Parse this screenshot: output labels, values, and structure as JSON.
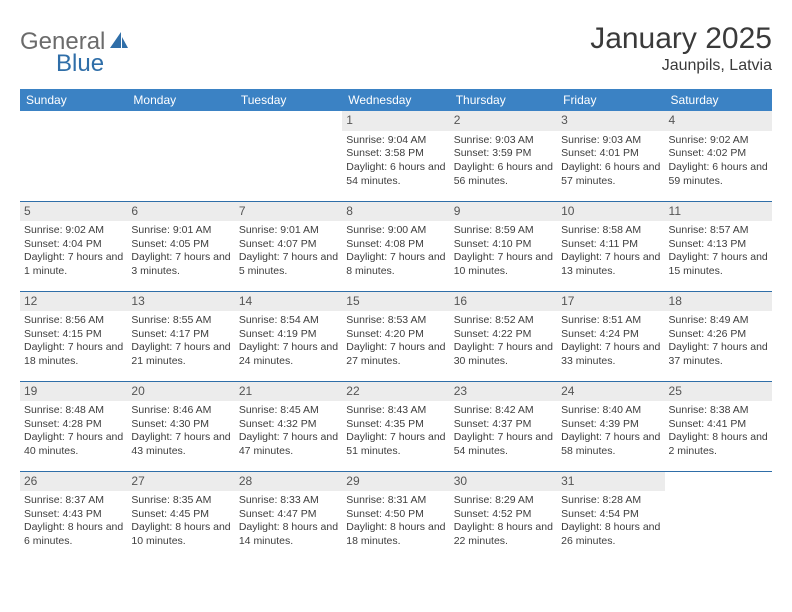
{
  "brand": {
    "part1": "General",
    "part2": "Blue",
    "part1_color": "#6b6b6b",
    "part2_color": "#2f6ea8",
    "sail_color": "#2f6ea8"
  },
  "title": "January 2025",
  "location": "Jaunpils, Latvia",
  "header_bg": "#3b82c4",
  "header_fg": "#ffffff",
  "daynum_bg": "#ececec",
  "rule_color": "#2f6ea8",
  "text_color": "#3d3d3d",
  "day_names": [
    "Sunday",
    "Monday",
    "Tuesday",
    "Wednesday",
    "Thursday",
    "Friday",
    "Saturday"
  ],
  "weeks": [
    [
      {
        "n": "",
        "sr": "",
        "ss": "",
        "dl": ""
      },
      {
        "n": "",
        "sr": "",
        "ss": "",
        "dl": ""
      },
      {
        "n": "",
        "sr": "",
        "ss": "",
        "dl": ""
      },
      {
        "n": "1",
        "sr": "Sunrise: 9:04 AM",
        "ss": "Sunset: 3:58 PM",
        "dl": "Daylight: 6 hours and 54 minutes."
      },
      {
        "n": "2",
        "sr": "Sunrise: 9:03 AM",
        "ss": "Sunset: 3:59 PM",
        "dl": "Daylight: 6 hours and 56 minutes."
      },
      {
        "n": "3",
        "sr": "Sunrise: 9:03 AM",
        "ss": "Sunset: 4:01 PM",
        "dl": "Daylight: 6 hours and 57 minutes."
      },
      {
        "n": "4",
        "sr": "Sunrise: 9:02 AM",
        "ss": "Sunset: 4:02 PM",
        "dl": "Daylight: 6 hours and 59 minutes."
      }
    ],
    [
      {
        "n": "5",
        "sr": "Sunrise: 9:02 AM",
        "ss": "Sunset: 4:04 PM",
        "dl": "Daylight: 7 hours and 1 minute."
      },
      {
        "n": "6",
        "sr": "Sunrise: 9:01 AM",
        "ss": "Sunset: 4:05 PM",
        "dl": "Daylight: 7 hours and 3 minutes."
      },
      {
        "n": "7",
        "sr": "Sunrise: 9:01 AM",
        "ss": "Sunset: 4:07 PM",
        "dl": "Daylight: 7 hours and 5 minutes."
      },
      {
        "n": "8",
        "sr": "Sunrise: 9:00 AM",
        "ss": "Sunset: 4:08 PM",
        "dl": "Daylight: 7 hours and 8 minutes."
      },
      {
        "n": "9",
        "sr": "Sunrise: 8:59 AM",
        "ss": "Sunset: 4:10 PM",
        "dl": "Daylight: 7 hours and 10 minutes."
      },
      {
        "n": "10",
        "sr": "Sunrise: 8:58 AM",
        "ss": "Sunset: 4:11 PM",
        "dl": "Daylight: 7 hours and 13 minutes."
      },
      {
        "n": "11",
        "sr": "Sunrise: 8:57 AM",
        "ss": "Sunset: 4:13 PM",
        "dl": "Daylight: 7 hours and 15 minutes."
      }
    ],
    [
      {
        "n": "12",
        "sr": "Sunrise: 8:56 AM",
        "ss": "Sunset: 4:15 PM",
        "dl": "Daylight: 7 hours and 18 minutes."
      },
      {
        "n": "13",
        "sr": "Sunrise: 8:55 AM",
        "ss": "Sunset: 4:17 PM",
        "dl": "Daylight: 7 hours and 21 minutes."
      },
      {
        "n": "14",
        "sr": "Sunrise: 8:54 AM",
        "ss": "Sunset: 4:19 PM",
        "dl": "Daylight: 7 hours and 24 minutes."
      },
      {
        "n": "15",
        "sr": "Sunrise: 8:53 AM",
        "ss": "Sunset: 4:20 PM",
        "dl": "Daylight: 7 hours and 27 minutes."
      },
      {
        "n": "16",
        "sr": "Sunrise: 8:52 AM",
        "ss": "Sunset: 4:22 PM",
        "dl": "Daylight: 7 hours and 30 minutes."
      },
      {
        "n": "17",
        "sr": "Sunrise: 8:51 AM",
        "ss": "Sunset: 4:24 PM",
        "dl": "Daylight: 7 hours and 33 minutes."
      },
      {
        "n": "18",
        "sr": "Sunrise: 8:49 AM",
        "ss": "Sunset: 4:26 PM",
        "dl": "Daylight: 7 hours and 37 minutes."
      }
    ],
    [
      {
        "n": "19",
        "sr": "Sunrise: 8:48 AM",
        "ss": "Sunset: 4:28 PM",
        "dl": "Daylight: 7 hours and 40 minutes."
      },
      {
        "n": "20",
        "sr": "Sunrise: 8:46 AM",
        "ss": "Sunset: 4:30 PM",
        "dl": "Daylight: 7 hours and 43 minutes."
      },
      {
        "n": "21",
        "sr": "Sunrise: 8:45 AM",
        "ss": "Sunset: 4:32 PM",
        "dl": "Daylight: 7 hours and 47 minutes."
      },
      {
        "n": "22",
        "sr": "Sunrise: 8:43 AM",
        "ss": "Sunset: 4:35 PM",
        "dl": "Daylight: 7 hours and 51 minutes."
      },
      {
        "n": "23",
        "sr": "Sunrise: 8:42 AM",
        "ss": "Sunset: 4:37 PM",
        "dl": "Daylight: 7 hours and 54 minutes."
      },
      {
        "n": "24",
        "sr": "Sunrise: 8:40 AM",
        "ss": "Sunset: 4:39 PM",
        "dl": "Daylight: 7 hours and 58 minutes."
      },
      {
        "n": "25",
        "sr": "Sunrise: 8:38 AM",
        "ss": "Sunset: 4:41 PM",
        "dl": "Daylight: 8 hours and 2 minutes."
      }
    ],
    [
      {
        "n": "26",
        "sr": "Sunrise: 8:37 AM",
        "ss": "Sunset: 4:43 PM",
        "dl": "Daylight: 8 hours and 6 minutes."
      },
      {
        "n": "27",
        "sr": "Sunrise: 8:35 AM",
        "ss": "Sunset: 4:45 PM",
        "dl": "Daylight: 8 hours and 10 minutes."
      },
      {
        "n": "28",
        "sr": "Sunrise: 8:33 AM",
        "ss": "Sunset: 4:47 PM",
        "dl": "Daylight: 8 hours and 14 minutes."
      },
      {
        "n": "29",
        "sr": "Sunrise: 8:31 AM",
        "ss": "Sunset: 4:50 PM",
        "dl": "Daylight: 8 hours and 18 minutes."
      },
      {
        "n": "30",
        "sr": "Sunrise: 8:29 AM",
        "ss": "Sunset: 4:52 PM",
        "dl": "Daylight: 8 hours and 22 minutes."
      },
      {
        "n": "31",
        "sr": "Sunrise: 8:28 AM",
        "ss": "Sunset: 4:54 PM",
        "dl": "Daylight: 8 hours and 26 minutes."
      },
      {
        "n": "",
        "sr": "",
        "ss": "",
        "dl": ""
      }
    ]
  ]
}
